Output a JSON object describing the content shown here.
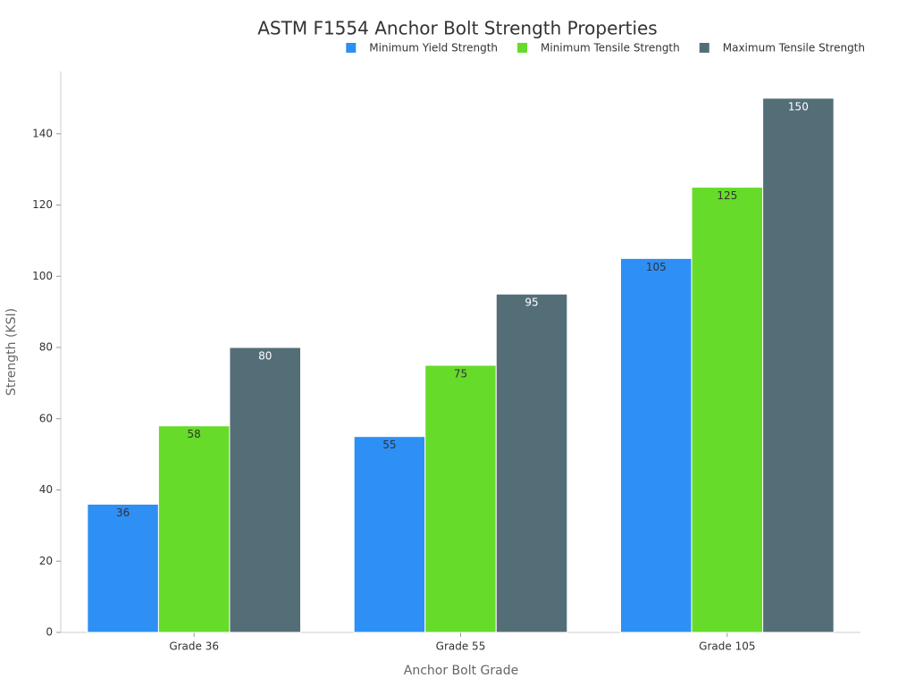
{
  "chart_data": {
    "type": "bar",
    "title": "ASTM F1554 Anchor Bolt Strength Properties",
    "x_label": "Anchor Bolt Grade",
    "y_label": "Strength (KSI)",
    "categories": [
      "Grade 36",
      "Grade 55",
      "Grade 105"
    ],
    "series": [
      {
        "name": "Minimum Yield Strength",
        "color": "#2e8ff5",
        "values": [
          36,
          55,
          105
        ]
      },
      {
        "name": "Minimum Tensile Strength",
        "color": "#66db29",
        "values": [
          58,
          75,
          125
        ]
      },
      {
        "name": "Maximum Tensile Strength",
        "color": "#546e78",
        "values": [
          80,
          95,
          150
        ]
      }
    ],
    "ylim": [
      0,
      157.5
    ],
    "yticks": [
      0,
      20,
      40,
      60,
      80,
      100,
      120,
      140
    ],
    "legend": "top-right"
  }
}
